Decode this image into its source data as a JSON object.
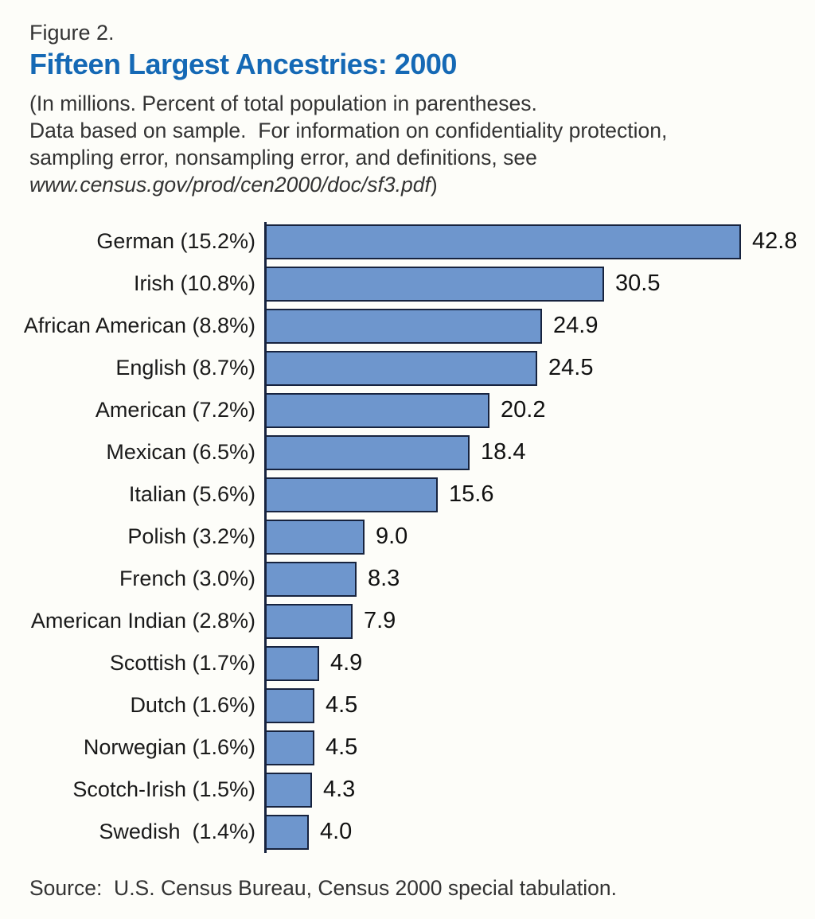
{
  "figure": {
    "label": "Figure 2.",
    "title": "Fifteen Largest Ancestries: 2000"
  },
  "note": {
    "body": "(In millions. Percent of total population in parentheses.\nData based on sample.  For information on confidentiality protection,\nsampling error, nonsampling error, and definitions, see\n",
    "url": "www.census.gov/prod/cen2000/doc/sf3.pdf",
    "url_suffix": ")"
  },
  "chart_data": {
    "type": "bar",
    "orientation": "horizontal",
    "title": "Fifteen Largest Ancestries: 2000",
    "unit": "millions",
    "xlabel": "",
    "ylabel": "",
    "xlim": [
      0,
      45
    ],
    "grid": false,
    "legend": false,
    "categories": [
      "German (15.2%)",
      "Irish (10.8%)",
      "African American (8.8%)",
      "English (8.7%)",
      "American (7.2%)",
      "Mexican (6.5%)",
      "Italian (5.6%)",
      "Polish (3.2%)",
      "French (3.0%)",
      "American Indian (2.8%)",
      "Scottish (1.7%)",
      "Dutch (1.6%)",
      "Norwegian (1.6%)",
      "Scotch-Irish (1.5%)",
      "Swedish  (1.4%)"
    ],
    "values": [
      42.8,
      30.5,
      24.9,
      24.5,
      20.2,
      18.4,
      15.6,
      9.0,
      8.3,
      7.9,
      4.9,
      4.5,
      4.5,
      4.3,
      4.0
    ],
    "value_labels": [
      "42.8",
      "30.5",
      "24.9",
      "24.5",
      "20.2",
      "18.4",
      "15.6",
      "9.0",
      "8.3",
      "7.9",
      "4.9",
      "4.5",
      "4.5",
      "4.3",
      "4.0"
    ]
  },
  "source": "Source:  U.S. Census Bureau, Census 2000 special tabulation.",
  "colors": {
    "title_accent": "#1569B5",
    "bar_fill": "#6E96CD",
    "bar_border": "#17233E",
    "axis": "#17233E"
  }
}
